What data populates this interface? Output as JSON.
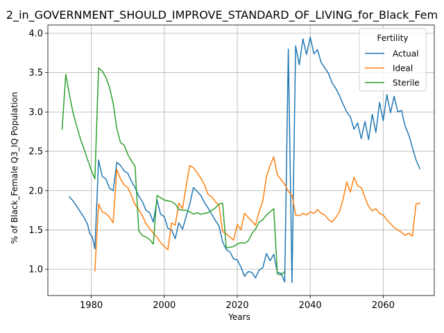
{
  "chart_data": {
    "type": "line",
    "title": "2_in_GOVERNMENT_SHOULD_IMPROVE_STANDARD_OF_LIVING_for_Black_Fem",
    "xlabel": "Years",
    "ylabel": "% of Black_Female Q3_IQ Population",
    "xlim": [
      1968.1,
      2074.0
    ],
    "ylim": [
      0.666,
      4.106
    ],
    "x_ticks": [
      1980,
      2000,
      2020,
      2040,
      2060
    ],
    "y_ticks": [
      1.0,
      1.5,
      2.0,
      2.5,
      3.0,
      3.5,
      4.0
    ],
    "x_tick_labels": [
      "1980",
      "2000",
      "2020",
      "2040",
      "2060"
    ],
    "y_tick_labels": [
      "1.0",
      "1.5",
      "2.0",
      "2.5",
      "3.0",
      "3.5",
      "4.0"
    ],
    "grid": true,
    "legend": {
      "title": "Fertility",
      "position": "top-right"
    },
    "series": [
      {
        "name": "Actual",
        "color": "#1f77b4",
        "points": [
          [
            1974,
            1.92
          ],
          [
            1975,
            1.87
          ],
          [
            1976,
            1.8
          ],
          [
            1977,
            1.73
          ],
          [
            1978,
            1.66
          ],
          [
            1979,
            1.57
          ],
          [
            1979.6,
            1.45
          ],
          [
            1980.2,
            1.42
          ],
          [
            1980.6,
            1.35
          ],
          [
            1981,
            1.26
          ],
          [
            1982,
            2.39
          ],
          [
            1983,
            2.18
          ],
          [
            1984,
            2.15
          ],
          [
            1985,
            2.03
          ],
          [
            1986,
            2.0
          ],
          [
            1987,
            2.36
          ],
          [
            1988,
            2.32
          ],
          [
            1989,
            2.25
          ],
          [
            1990,
            2.22
          ],
          [
            1991,
            2.12
          ],
          [
            1992,
            2.04
          ],
          [
            1993,
            1.93
          ],
          [
            1994,
            1.86
          ],
          [
            1995,
            1.75
          ],
          [
            1996,
            1.72
          ],
          [
            1997,
            1.6
          ],
          [
            1998,
            1.88
          ],
          [
            1999,
            1.7
          ],
          [
            2000,
            1.67
          ],
          [
            2001,
            1.52
          ],
          [
            2002,
            1.5
          ],
          [
            2003,
            1.39
          ],
          [
            2004,
            1.59
          ],
          [
            2005,
            1.51
          ],
          [
            2006,
            1.67
          ],
          [
            2007,
            1.83
          ],
          [
            2008,
            2.04
          ],
          [
            2009,
            1.99
          ],
          [
            2010,
            1.94
          ],
          [
            2011,
            1.85
          ],
          [
            2012,
            1.78
          ],
          [
            2013,
            1.7
          ],
          [
            2014,
            1.62
          ],
          [
            2015,
            1.55
          ],
          [
            2016,
            1.35
          ],
          [
            2017,
            1.25
          ],
          [
            2018,
            1.22
          ],
          [
            2019,
            1.13
          ],
          [
            2020,
            1.12
          ],
          [
            2021,
            1.03
          ],
          [
            2022,
            0.91
          ],
          [
            2023,
            0.97
          ],
          [
            2024,
            0.96
          ],
          [
            2025,
            0.89
          ],
          [
            2026,
            0.99
          ],
          [
            2027,
            1.02
          ],
          [
            2028,
            1.2
          ],
          [
            2029,
            1.11
          ],
          [
            2030,
            1.19
          ],
          [
            2031,
            0.96
          ],
          [
            2032,
            0.95
          ],
          [
            2033,
            0.84
          ],
          [
            2034,
            3.8
          ],
          [
            2035,
            0.83
          ],
          [
            2036,
            3.84
          ],
          [
            2037,
            3.6
          ],
          [
            2038,
            3.93
          ],
          [
            2039,
            3.73
          ],
          [
            2040,
            3.95
          ],
          [
            2041,
            3.74
          ],
          [
            2042,
            3.79
          ],
          [
            2043,
            3.63
          ],
          [
            2044,
            3.56
          ],
          [
            2045,
            3.49
          ],
          [
            2046,
            3.37
          ],
          [
            2047,
            3.3
          ],
          [
            2048,
            3.21
          ],
          [
            2049,
            3.1
          ],
          [
            2050,
            3.0
          ],
          [
            2051,
            2.94
          ],
          [
            2052,
            2.78
          ],
          [
            2053,
            2.86
          ],
          [
            2054,
            2.66
          ],
          [
            2055,
            2.88
          ],
          [
            2056,
            2.65
          ],
          [
            2057,
            2.97
          ],
          [
            2058,
            2.74
          ],
          [
            2059,
            3.12
          ],
          [
            2060,
            2.89
          ],
          [
            2061,
            3.22
          ],
          [
            2062,
            2.99
          ],
          [
            2063,
            3.2
          ],
          [
            2064,
            3.0
          ],
          [
            2065,
            3.02
          ],
          [
            2066,
            2.82
          ],
          [
            2067,
            2.71
          ],
          [
            2068,
            2.55
          ],
          [
            2069,
            2.39
          ],
          [
            2070,
            2.28
          ]
        ]
      },
      {
        "name": "Ideal",
        "color": "#ff7f0e",
        "points": [
          [
            1981,
            0.98
          ],
          [
            1982,
            1.83
          ],
          [
            1983,
            1.73
          ],
          [
            1984,
            1.71
          ],
          [
            1985,
            1.66
          ],
          [
            1986,
            1.59
          ],
          [
            1987,
            2.27
          ],
          [
            1988,
            2.15
          ],
          [
            1989,
            2.07
          ],
          [
            1990,
            2.04
          ],
          [
            1991,
            1.94
          ],
          [
            1992,
            1.82
          ],
          [
            1993,
            1.76
          ],
          [
            1994,
            1.68
          ],
          [
            1995,
            1.58
          ],
          [
            1996,
            1.52
          ],
          [
            1997,
            1.46
          ],
          [
            1998,
            1.41
          ],
          [
            1999,
            1.34
          ],
          [
            2000,
            1.29
          ],
          [
            2001,
            1.25
          ],
          [
            2002,
            1.59
          ],
          [
            2003,
            1.56
          ],
          [
            2004,
            1.84
          ],
          [
            2005,
            1.77
          ],
          [
            2006,
            2.06
          ],
          [
            2007,
            2.32
          ],
          [
            2008,
            2.29
          ],
          [
            2009,
            2.23
          ],
          [
            2010,
            2.16
          ],
          [
            2011,
            2.08
          ],
          [
            2012,
            1.95
          ],
          [
            2013,
            1.92
          ],
          [
            2014,
            1.86
          ],
          [
            2015,
            1.81
          ],
          [
            2016,
            1.48
          ],
          [
            2017,
            1.45
          ],
          [
            2018,
            1.41
          ],
          [
            2019,
            1.37
          ],
          [
            2020,
            1.57
          ],
          [
            2021,
            1.5
          ],
          [
            2022,
            1.71
          ],
          [
            2023,
            1.66
          ],
          [
            2024,
            1.61
          ],
          [
            2025,
            1.56
          ],
          [
            2026,
            1.73
          ],
          [
            2027,
            1.87
          ],
          [
            2028,
            2.18
          ],
          [
            2029,
            2.32
          ],
          [
            2030,
            2.43
          ],
          [
            2031,
            2.2
          ],
          [
            2032,
            2.14
          ],
          [
            2033,
            2.08
          ],
          [
            2034,
            1.99
          ],
          [
            2035,
            1.94
          ],
          [
            2036,
            1.69
          ],
          [
            2037,
            1.68
          ],
          [
            2038,
            1.71
          ],
          [
            2039,
            1.69
          ],
          [
            2040,
            1.73
          ],
          [
            2041,
            1.71
          ],
          [
            2042,
            1.76
          ],
          [
            2043,
            1.71
          ],
          [
            2044,
            1.69
          ],
          [
            2045,
            1.63
          ],
          [
            2046,
            1.6
          ],
          [
            2047,
            1.66
          ],
          [
            2048,
            1.73
          ],
          [
            2049,
            1.89
          ],
          [
            2050,
            2.11
          ],
          [
            2051,
            1.98
          ],
          [
            2052,
            2.17
          ],
          [
            2053,
            2.06
          ],
          [
            2054,
            2.04
          ],
          [
            2055,
            1.91
          ],
          [
            2056,
            1.8
          ],
          [
            2057,
            1.74
          ],
          [
            2058,
            1.77
          ],
          [
            2059,
            1.71
          ],
          [
            2060,
            1.69
          ],
          [
            2061,
            1.63
          ],
          [
            2062,
            1.58
          ],
          [
            2063,
            1.53
          ],
          [
            2064,
            1.5
          ],
          [
            2065,
            1.47
          ],
          [
            2066,
            1.43
          ],
          [
            2067,
            1.46
          ],
          [
            2068,
            1.42
          ],
          [
            2069,
            1.83
          ],
          [
            2070,
            1.84
          ]
        ]
      },
      {
        "name": "Sterile",
        "color": "#2ca02c",
        "points": [
          [
            1972,
            2.78
          ],
          [
            1973,
            3.48
          ],
          [
            1974,
            3.22
          ],
          [
            1975,
            2.99
          ],
          [
            1976,
            2.82
          ],
          [
            1977,
            2.66
          ],
          [
            1978,
            2.53
          ],
          [
            1979,
            2.39
          ],
          [
            1980,
            2.26
          ],
          [
            1981,
            2.15
          ],
          [
            1982,
            3.56
          ],
          [
            1983,
            3.52
          ],
          [
            1984,
            3.44
          ],
          [
            1985,
            3.31
          ],
          [
            1986,
            3.11
          ],
          [
            1987,
            2.79
          ],
          [
            1988,
            2.61
          ],
          [
            1989,
            2.58
          ],
          [
            1990,
            2.46
          ],
          [
            1991,
            2.38
          ],
          [
            1992,
            2.31
          ],
          [
            1993,
            1.49
          ],
          [
            1994,
            1.43
          ],
          [
            1995,
            1.41
          ],
          [
            1996,
            1.38
          ],
          [
            1997,
            1.32
          ],
          [
            1998,
            1.94
          ],
          [
            1999,
            1.91
          ],
          [
            2000,
            1.88
          ],
          [
            2001,
            1.87
          ],
          [
            2002,
            1.86
          ],
          [
            2003,
            1.83
          ],
          [
            2004,
            1.76
          ],
          [
            2005,
            1.75
          ],
          [
            2006,
            1.75
          ],
          [
            2007,
            1.73
          ],
          [
            2008,
            1.7
          ],
          [
            2009,
            1.72
          ],
          [
            2010,
            1.7
          ],
          [
            2011,
            1.71
          ],
          [
            2012,
            1.72
          ],
          [
            2013,
            1.75
          ],
          [
            2014,
            1.78
          ],
          [
            2015,
            1.83
          ],
          [
            2016,
            1.84
          ],
          [
            2017,
            1.27
          ],
          [
            2018,
            1.28
          ],
          [
            2019,
            1.29
          ],
          [
            2020,
            1.32
          ],
          [
            2021,
            1.34
          ],
          [
            2022,
            1.33
          ],
          [
            2023,
            1.36
          ],
          [
            2024,
            1.45
          ],
          [
            2025,
            1.51
          ],
          [
            2026,
            1.6
          ],
          [
            2027,
            1.63
          ],
          [
            2028,
            1.69
          ],
          [
            2029,
            1.73
          ],
          [
            2030,
            1.77
          ],
          [
            2031,
            0.94
          ],
          [
            2032,
            0.93
          ],
          [
            2033,
            0.97
          ]
        ]
      }
    ]
  }
}
